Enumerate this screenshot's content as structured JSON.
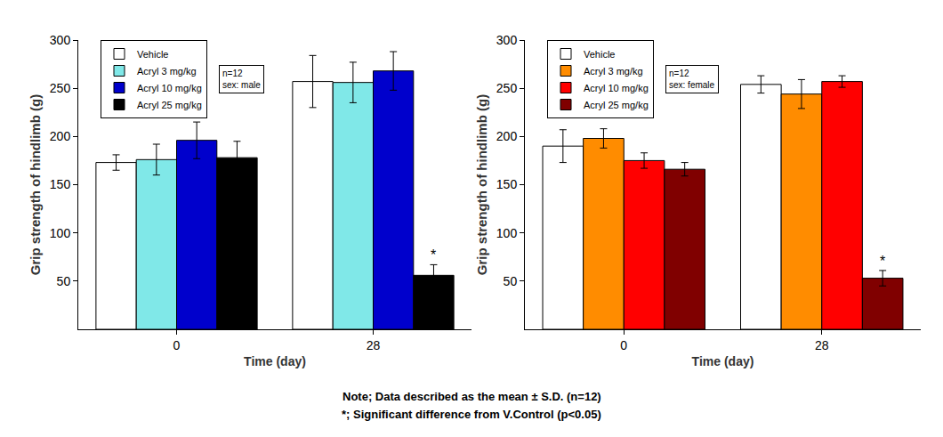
{
  "chart_data": [
    {
      "type": "bar",
      "x_label": "Time (day)",
      "y_label": "Grip strength of hindlimb (g)",
      "categories": [
        "0",
        "28"
      ],
      "ylim": [
        0,
        300
      ],
      "yticks": [
        50,
        100,
        150,
        200,
        250,
        300
      ],
      "grid": false,
      "legend": "top left",
      "legend_note": [
        "n=12",
        "sex: male"
      ],
      "series": [
        {
          "name": "Vehicle",
          "color": "#ffffff",
          "values": [
            173,
            257
          ],
          "errors": [
            8,
            27
          ]
        },
        {
          "name": "Acryl 3 mg/kg",
          "color": "#80e8e8",
          "values": [
            176,
            256
          ],
          "errors": [
            16,
            21
          ]
        },
        {
          "name": "Acryl 10 mg/kg",
          "color": "#0000cc",
          "values": [
            196,
            268
          ],
          "errors": [
            19,
            20
          ]
        },
        {
          "name": "Acryl 25 mg/kg",
          "color": "#000000",
          "values": [
            178,
            56
          ],
          "errors": [
            17,
            11
          ]
        }
      ],
      "annotations": [
        {
          "text": "*",
          "category": "28",
          "series": "Acryl 25 mg/kg"
        }
      ]
    },
    {
      "type": "bar",
      "x_label": "Time (day)",
      "y_label": "Grip strength of hindlimb (g)",
      "categories": [
        "0",
        "28"
      ],
      "ylim": [
        0,
        300
      ],
      "yticks": [
        50,
        100,
        150,
        200,
        250,
        300
      ],
      "grid": false,
      "legend": "top left",
      "legend_note": [
        "n=12",
        "sex: female"
      ],
      "series": [
        {
          "name": "Vehicle",
          "color": "#ffffff",
          "values": [
            190,
            254
          ],
          "errors": [
            17,
            9
          ]
        },
        {
          "name": "Acryl 3 mg/kg",
          "color": "#ff8c00",
          "values": [
            198,
            244
          ],
          "errors": [
            10,
            15
          ]
        },
        {
          "name": "Acryl 10 mg/kg",
          "color": "#ff0000",
          "values": [
            175,
            257
          ],
          "errors": [
            8,
            6
          ]
        },
        {
          "name": "Acryl 25 mg/kg",
          "color": "#800000",
          "values": [
            166,
            53
          ],
          "errors": [
            7,
            8
          ]
        }
      ],
      "annotations": [
        {
          "text": "*",
          "category": "28",
          "series": "Acryl 25 mg/kg"
        }
      ]
    }
  ],
  "notes": [
    "Note; Data described as the mean ± S.D. (n=12)",
    "*; Significant difference from V.Control (p<0.05)"
  ]
}
